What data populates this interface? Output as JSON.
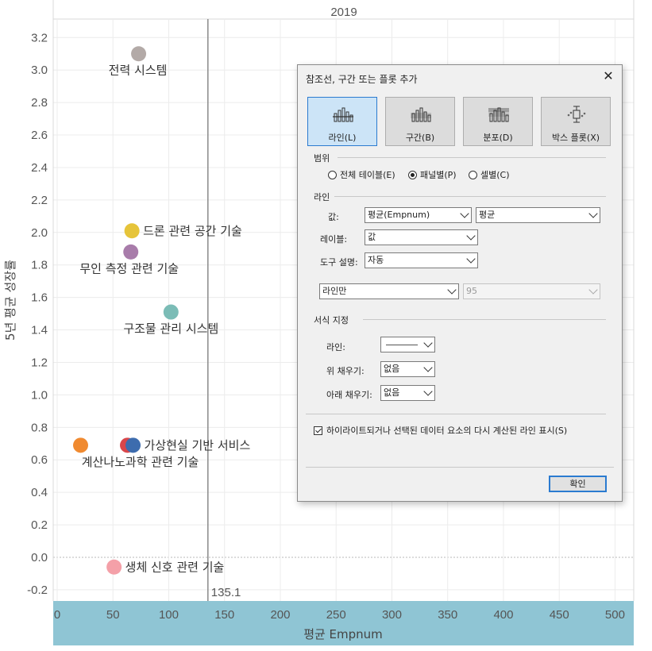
{
  "chart_data": {
    "type": "scatter",
    "title": "2019",
    "xlabel": "평균 Empnum",
    "ylabel": "5년 평균 성장률",
    "xlim": [
      0,
      520
    ],
    "ylim": [
      -0.25,
      3.3
    ],
    "x_ticks": [
      "0",
      "50",
      "100",
      "150",
      "200",
      "250",
      "300",
      "350",
      "400",
      "450",
      "500"
    ],
    "y_ticks": [
      "-0.2",
      "0.0",
      "0.2",
      "0.4",
      "0.6",
      "0.8",
      "1.0",
      "1.2",
      "1.4",
      "1.6",
      "1.8",
      "2.0",
      "2.2",
      "2.4",
      "2.6",
      "2.8",
      "3.0",
      "3.2"
    ],
    "reference_line": {
      "x": 135.1,
      "label": "135.1"
    },
    "grid": true,
    "points": [
      {
        "label": "전력 시스템",
        "x": 73,
        "y": 3.1,
        "color": "#b3aaa7"
      },
      {
        "label": "드론 관련 공간 기술",
        "x": 67,
        "y": 2.01,
        "color": "#e6c43a"
      },
      {
        "label": "무인 측정 관련 기술",
        "x": 66,
        "y": 1.88,
        "color": "#a87caa"
      },
      {
        "label": "구조물 관리 시스템",
        "x": 102,
        "y": 1.51,
        "color": "#7bbcb6"
      },
      {
        "label": "가상현실 기반 서비스",
        "x": 68,
        "y": 0.69,
        "color": "#3d6cae"
      },
      {
        "label": "",
        "x": 63,
        "y": 0.69,
        "color": "#d9464a"
      },
      {
        "label": "계산나노과학 관련 기술",
        "x": 21,
        "y": 0.69,
        "color": "#f08a30"
      },
      {
        "label": "생체 신호 관련 기술",
        "x": 51,
        "y": -0.06,
        "color": "#f4a0a8"
      }
    ]
  },
  "dialog": {
    "title": "참조선, 구간 또는 플롯 추가",
    "close": "✕",
    "modes": [
      "라인(L)",
      "구간(B)",
      "분포(D)",
      "박스 플롯(X)"
    ],
    "scope_label": "범위",
    "scope_options": [
      "전체 테이블(E)",
      "패널별(P)",
      "셀별(C)"
    ],
    "scope_selected": 1,
    "line_section": "라인",
    "value_label": "값:",
    "value_field": "평균(Empnum)",
    "value_agg": "평균",
    "label_label": "레이블:",
    "label_value": "값",
    "tooltip_label": "도구 설명:",
    "tooltip_value": "자동",
    "line_only": "라인만",
    "confidence": "95",
    "format_section": "서식 지정",
    "fmt_line_label": "라인:",
    "fmt_above_label": "위 채우기:",
    "fmt_above_value": "없음",
    "fmt_below_label": "아래 채우기:",
    "fmt_below_value": "없음",
    "checkbox_label": "하이라이트되거나 선택된 데이터 요소의 다시 계산된 라인 표시(S)",
    "ok": "확인"
  }
}
